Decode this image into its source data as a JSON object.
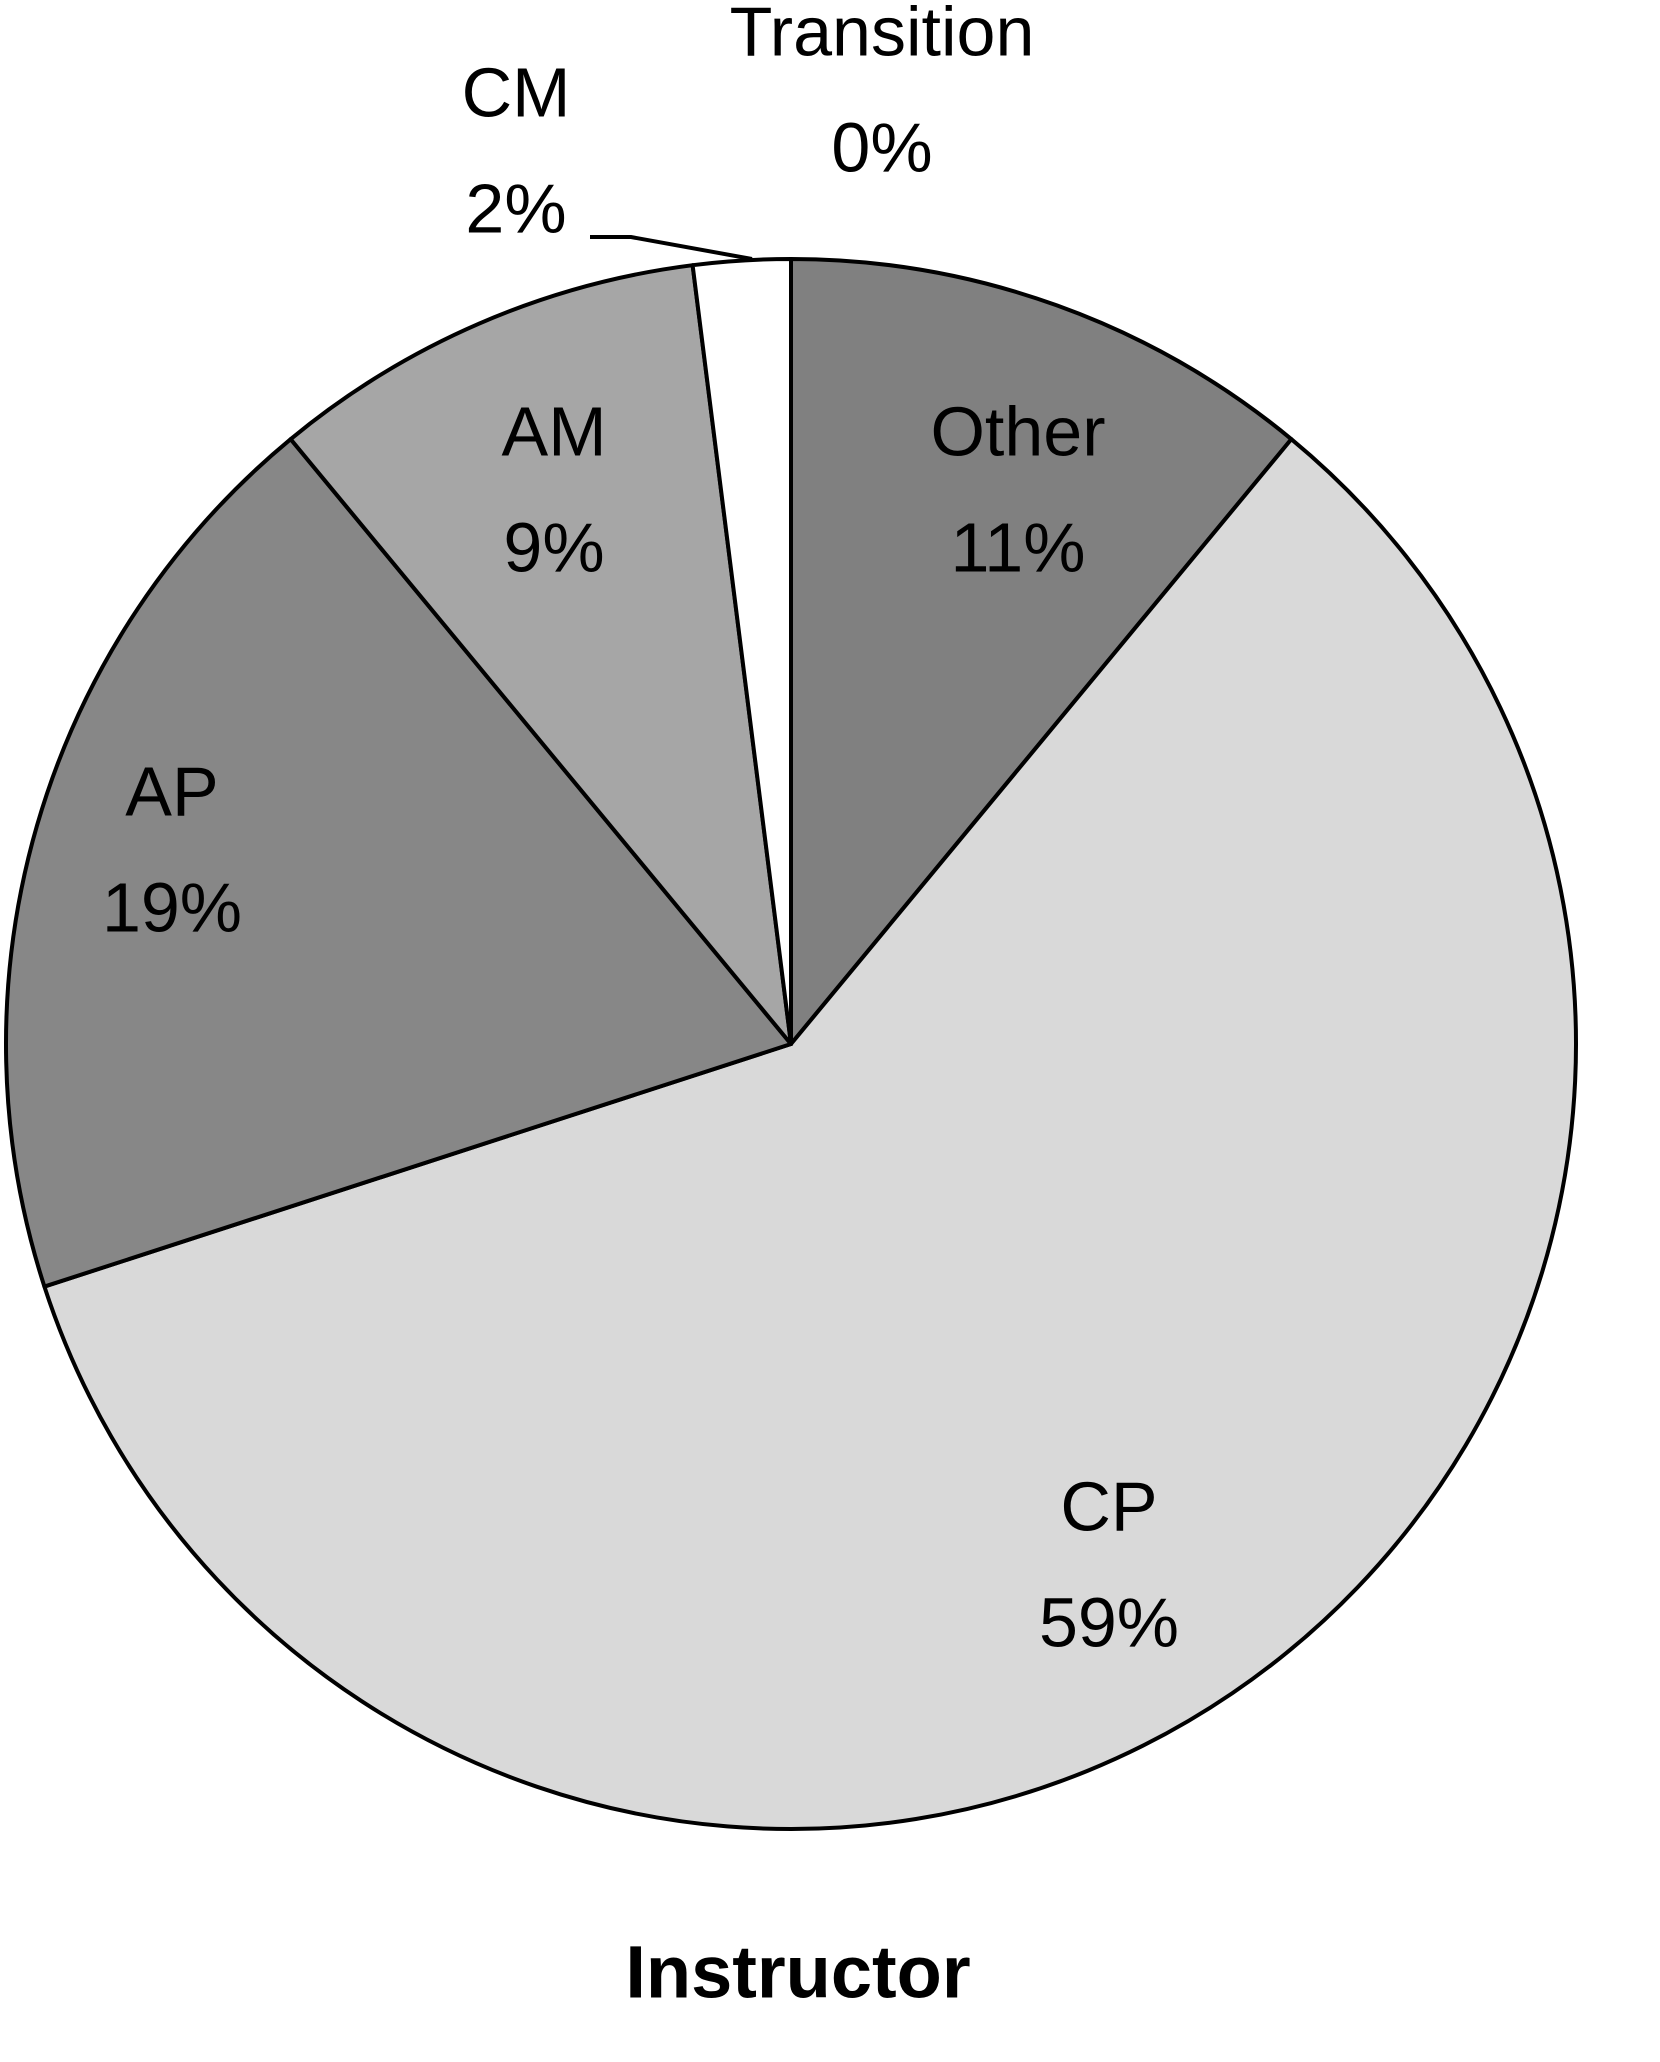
{
  "chart_data": {
    "type": "pie",
    "title": "Instructor",
    "categories": [
      "Other",
      "CP",
      "AP",
      "AM",
      "CM",
      "Transition"
    ],
    "values": [
      11,
      59,
      19,
      9,
      2,
      0
    ],
    "value_labels": [
      "11%",
      "59%",
      "19%",
      "9%",
      "2%",
      "0%"
    ],
    "colors": [
      "#808080",
      "#d9d9d9",
      "#878787",
      "#a6a6a6",
      "#ffffff",
      "#ffffff"
    ]
  }
}
